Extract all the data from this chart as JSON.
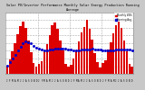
{
  "title": "Solar PV/Inverter Performance Monthly Solar Energy Production Running Average",
  "bar_color": "#dd0000",
  "avg_color": "#0000cc",
  "background_color": "#c8c8c8",
  "plot_bg_color": "#ffffff",
  "grid_color": "#aaaaaa",
  "values": [
    55,
    95,
    145,
    200,
    260,
    310,
    340,
    300,
    220,
    140,
    70,
    45,
    65,
    85,
    155,
    195,
    255,
    320,
    335,
    295,
    215,
    150,
    65,
    50,
    60,
    100,
    150,
    210,
    270,
    305,
    350,
    295,
    225,
    135,
    75,
    40,
    70,
    90,
    160,
    205,
    265,
    315,
    340,
    300,
    220,
    145,
    65,
    45
  ],
  "running_avg": [
    55,
    75,
    98,
    124,
    151,
    177,
    201,
    211,
    208,
    198,
    185,
    169,
    162,
    157,
    155,
    155,
    156,
    160,
    163,
    165,
    165,
    166,
    162,
    159,
    156,
    154,
    153,
    154,
    156,
    157,
    160,
    161,
    162,
    161,
    159,
    157,
    155,
    153,
    153,
    154,
    155,
    157,
    159,
    160,
    160,
    159,
    157,
    155
  ],
  "n_bars": 48,
  "ylim": [
    0,
    400
  ],
  "legend_bar": "Monthly kWh",
  "legend_avg": "Running Avg"
}
